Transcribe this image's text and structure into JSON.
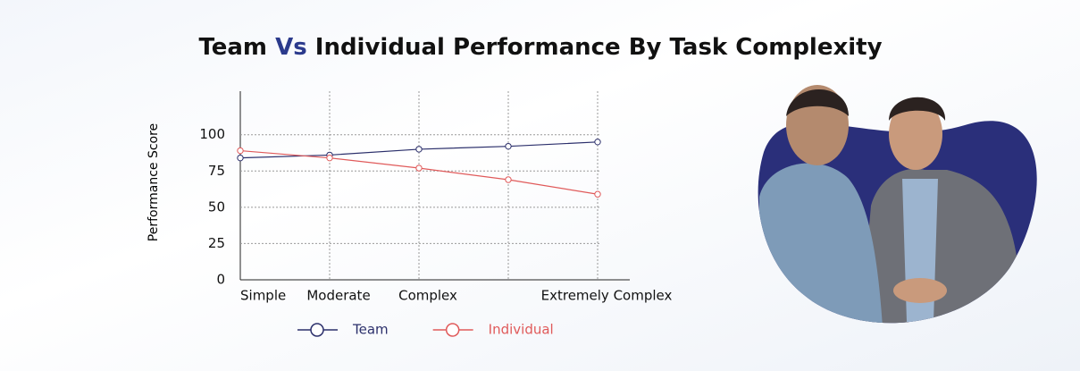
{
  "chart_data": {
    "type": "line",
    "title": [
      "Team",
      "Vs",
      "Individual Performance By Task Complexity"
    ],
    "title_colors": [
      "#111111",
      "#2b3a8c",
      "#111111"
    ],
    "y_label": "Performance Score",
    "categories": [
      "Simple",
      "Moderate",
      "Complex",
      null,
      "Extremely Complex"
    ],
    "series": [
      {
        "name": "Team",
        "color": "#2b2f6b",
        "values": [
          84,
          86,
          90,
          92,
          95
        ]
      },
      {
        "name": "Individual",
        "color": "#e05a5a",
        "values": [
          89,
          84,
          77,
          69,
          59
        ]
      }
    ],
    "ylim": [
      0,
      130
    ],
    "yticks": [
      0,
      25,
      50,
      75,
      100
    ],
    "grid": true,
    "legend": "bottom"
  }
}
